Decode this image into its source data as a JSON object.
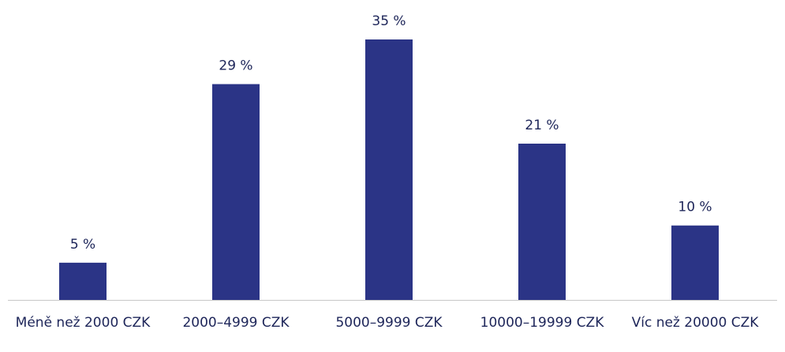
{
  "chart_data": {
    "type": "bar",
    "categories": [
      "Méně než 2000 CZK",
      "2000–4999 CZK",
      "5000–9999 CZK",
      "10000–19999 CZK",
      "Víc než 20000 CZK"
    ],
    "values": [
      5,
      29,
      35,
      21,
      10
    ],
    "value_labels": [
      "5 %",
      "29 %",
      "35 %",
      "21 %",
      "10 %"
    ],
    "color": "#2b3486"
  }
}
